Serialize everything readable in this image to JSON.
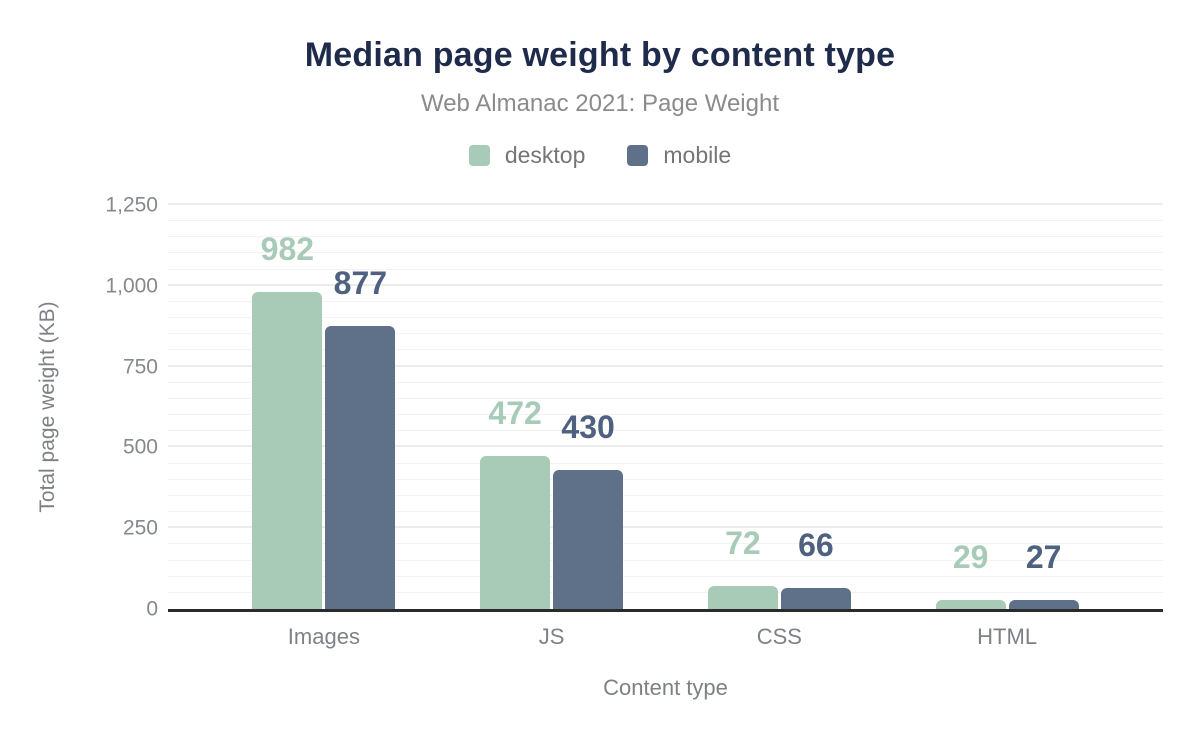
{
  "chart_data": {
    "type": "bar",
    "title": "Median page weight by content type",
    "subtitle": "Web Almanac 2021: Page Weight",
    "xlabel": "Content type",
    "ylabel": "Total page weight (KB)",
    "categories": [
      "Images",
      "JS",
      "CSS",
      "HTML"
    ],
    "series": [
      {
        "name": "desktop",
        "color": "#a8cbb8",
        "label_color": "#a8cbb8",
        "values": [
          982,
          472,
          72,
          29
        ]
      },
      {
        "name": "mobile",
        "color": "#5f7089",
        "label_color": "#4e6180",
        "values": [
          877,
          430,
          66,
          27
        ]
      }
    ],
    "ylim": [
      0,
      1250
    ],
    "ytick_interval": 250,
    "minor_gridline_interval": 50,
    "yticks": [
      "0",
      "250",
      "500",
      "750",
      "1,000",
      "1,250"
    ],
    "legend_position": "top",
    "grid": true
  },
  "colors": {
    "title": "#1f2b4a",
    "subtitle": "#8b8b8b",
    "axis_line": "#2b2b2b",
    "major_gridline": "#ececec",
    "minor_gridline": "#f3f3f3",
    "tick_text": "#85888c"
  }
}
